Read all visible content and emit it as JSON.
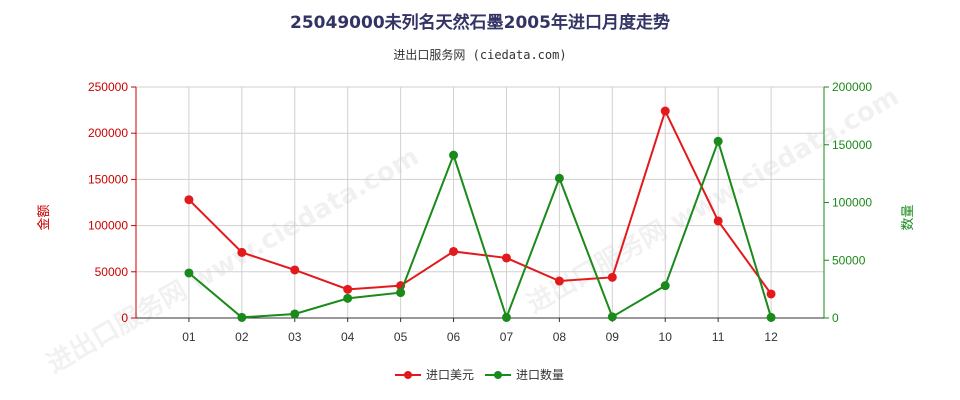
{
  "title": "25049000未列名天然石墨2005年进口月度走势",
  "subtitle": "进出口服务网 (ciedata.com)",
  "watermark": "进出口服务网 www.ciedata.com",
  "chart_data": {
    "type": "line",
    "categories": [
      "01",
      "02",
      "03",
      "04",
      "05",
      "06",
      "07",
      "08",
      "09",
      "10",
      "11",
      "12"
    ],
    "series": [
      {
        "name": "进口美元",
        "axis": "left",
        "color": "#e31a1c",
        "values": [
          128000,
          71000,
          52000,
          31000,
          35000,
          72000,
          65000,
          40000,
          44000,
          224000,
          105000,
          26000
        ]
      },
      {
        "name": "进口数量",
        "axis": "right",
        "color": "#1a8a1a",
        "values": [
          39000,
          500,
          3500,
          17000,
          22000,
          141000,
          500,
          121000,
          1000,
          28000,
          153000,
          500
        ]
      }
    ],
    "left_axis": {
      "label": "金额",
      "min": 0,
      "max": 250000,
      "ticks": [
        "0",
        "50000",
        "100000",
        "150000",
        "200000",
        "250000"
      ],
      "color": "#cc0000"
    },
    "right_axis": {
      "label": "数量",
      "min": 0,
      "max": 200000,
      "ticks": [
        "0",
        "50000",
        "100000",
        "150000",
        "200000"
      ],
      "color": "#1a8a1a"
    },
    "grid": true,
    "legend_position": "bottom-center"
  }
}
